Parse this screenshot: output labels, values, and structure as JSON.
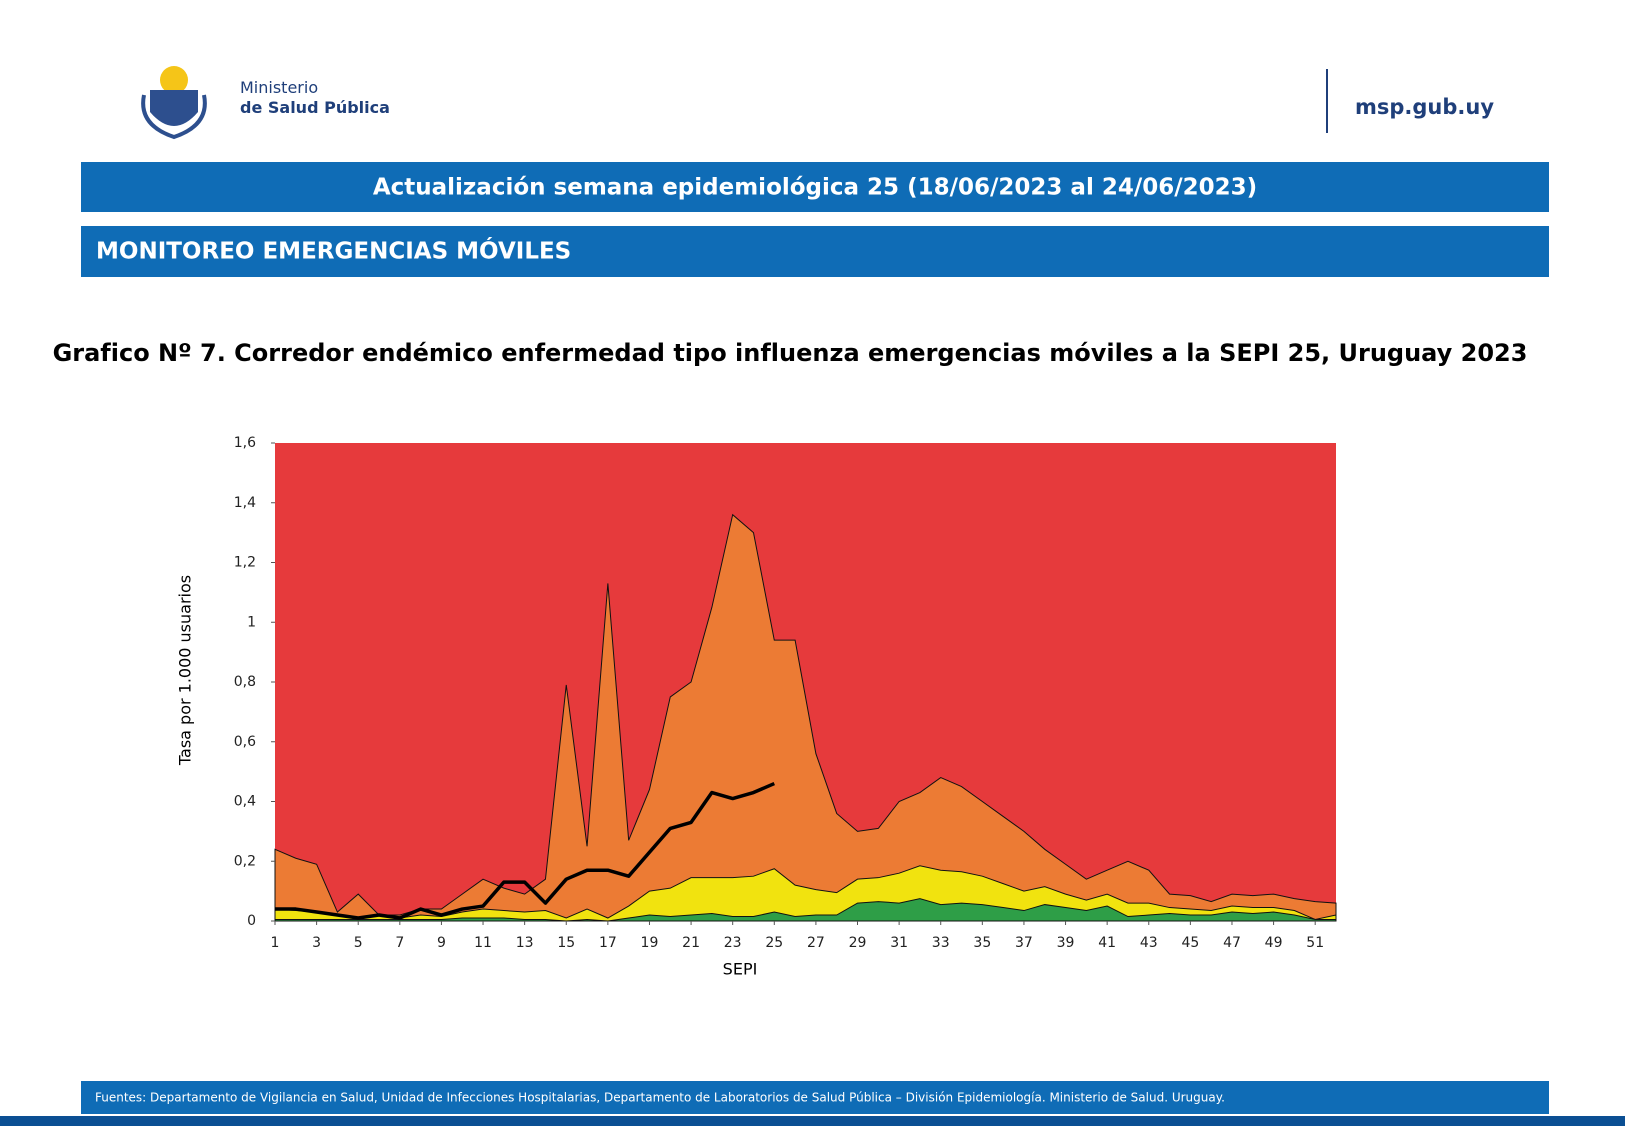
{
  "header": {
    "ministry_line1": "Ministerio",
    "ministry_line2": "de Salud Pública",
    "site": "msp.gub.uy"
  },
  "banner": {
    "update": "Actualización semana epidemiológica 25 (18/06/2023 al 24/06/2023)",
    "section": "MONITOREO EMERGENCIAS MÓVILES"
  },
  "chart_data": {
    "type": "area",
    "title": "Grafico Nº 7. Corredor endémico enfermedad tipo influenza emergencias móviles a la SEPI 25, Uruguay 2023",
    "x_label": "SEPI",
    "y_label": "Tasa  por 1.000 usuarios",
    "background_color": "#e63a3c",
    "x": [
      1,
      2,
      3,
      4,
      5,
      6,
      7,
      8,
      9,
      10,
      11,
      12,
      13,
      14,
      15,
      16,
      17,
      18,
      19,
      20,
      21,
      22,
      23,
      24,
      25,
      26,
      27,
      28,
      29,
      30,
      31,
      32,
      33,
      34,
      35,
      36,
      37,
      38,
      39,
      40,
      41,
      42,
      43,
      44,
      45,
      46,
      47,
      48,
      49,
      50,
      51,
      52
    ],
    "xlim": [
      1,
      52
    ],
    "xticks": [
      1,
      3,
      5,
      7,
      9,
      11,
      13,
      15,
      17,
      19,
      21,
      23,
      25,
      27,
      29,
      31,
      33,
      35,
      37,
      39,
      41,
      43,
      45,
      47,
      49,
      51
    ],
    "ylim": [
      0,
      1.6
    ],
    "yticks": [
      0,
      {
        "value": 0.2,
        "label": "0,2"
      },
      {
        "value": 0.4,
        "label": "0,4"
      },
      {
        "value": 0.6,
        "label": "0,6"
      },
      {
        "value": 0.8,
        "label": "0,8"
      },
      1,
      {
        "value": 1.2,
        "label": "1,2"
      },
      {
        "value": 1.4,
        "label": "1,4"
      },
      {
        "value": 1.6,
        "label": "1,6"
      }
    ],
    "series": [
      {
        "type": "area",
        "color": "#ec7b34",
        "values": [
          0.24,
          0.21,
          0.19,
          0.03,
          0.09,
          0.02,
          0.02,
          0.04,
          0.04,
          0.09,
          0.14,
          0.11,
          0.09,
          0.14,
          0.79,
          0.25,
          1.13,
          0.27,
          0.44,
          0.75,
          0.8,
          1.05,
          1.36,
          1.3,
          0.94,
          0.94,
          0.56,
          0.36,
          0.3,
          0.31,
          0.4,
          0.43,
          0.48,
          0.45,
          0.4,
          0.35,
          0.3,
          0.24,
          0.19,
          0.14,
          0.17,
          0.2,
          0.17,
          0.09,
          0.085,
          0.065,
          0.09,
          0.085,
          0.09,
          0.075,
          0.065,
          0.06
        ]
      },
      {
        "type": "area",
        "color": "#f1e30f",
        "values": [
          0.04,
          0.035,
          0.03,
          0.02,
          0.01,
          0.02,
          0.01,
          0.02,
          0.015,
          0.03,
          0.04,
          0.035,
          0.03,
          0.035,
          0.01,
          0.04,
          0.01,
          0.05,
          0.1,
          0.11,
          0.145,
          0.145,
          0.145,
          0.15,
          0.175,
          0.12,
          0.105,
          0.095,
          0.14,
          0.145,
          0.16,
          0.185,
          0.17,
          0.165,
          0.15,
          0.125,
          0.1,
          0.115,
          0.09,
          0.07,
          0.09,
          0.06,
          0.06,
          0.045,
          0.04,
          0.035,
          0.05,
          0.045,
          0.045,
          0.035,
          0.005,
          0.02
        ]
      },
      {
        "type": "area",
        "color": "#2e9e47",
        "values": [
          0.005,
          0.005,
          0.005,
          0.005,
          0.005,
          0.005,
          0.005,
          0.005,
          0.005,
          0.01,
          0.01,
          0.01,
          0.005,
          0.005,
          0,
          0.005,
          0,
          0.01,
          0.02,
          0.015,
          0.02,
          0.025,
          0.015,
          0.015,
          0.03,
          0.015,
          0.02,
          0.02,
          0.06,
          0.065,
          0.06,
          0.075,
          0.055,
          0.06,
          0.055,
          0.045,
          0.035,
          0.055,
          0.045,
          0.035,
          0.05,
          0.015,
          0.02,
          0.025,
          0.02,
          0.02,
          0.03,
          0.025,
          0.03,
          0.02,
          0.005,
          0.005
        ]
      },
      {
        "type": "line",
        "color": "#000000",
        "values": [
          0.04,
          0.04,
          0.03,
          0.02,
          0.01,
          0.02,
          0.01,
          0.04,
          0.02,
          0.04,
          0.05,
          0.13,
          0.13,
          0.06,
          0.14,
          0.17,
          0.17,
          0.15,
          0.23,
          0.31,
          0.33,
          0.43,
          0.41,
          0.43,
          0.46,
          null,
          null,
          null,
          null,
          null,
          null,
          null,
          null,
          null,
          null,
          null,
          null,
          null,
          null,
          null,
          null,
          null,
          null,
          null,
          null,
          null,
          null,
          null,
          null,
          null,
          null,
          null
        ]
      }
    ]
  },
  "footer": {
    "sources": "Fuentes: Departamento de Vigilancia en Salud, Unidad de Infecciones Hospitalarias, Departamento de Laboratorios de Salud Pública – División Epidemiología. Ministerio de Salud. Uruguay."
  }
}
